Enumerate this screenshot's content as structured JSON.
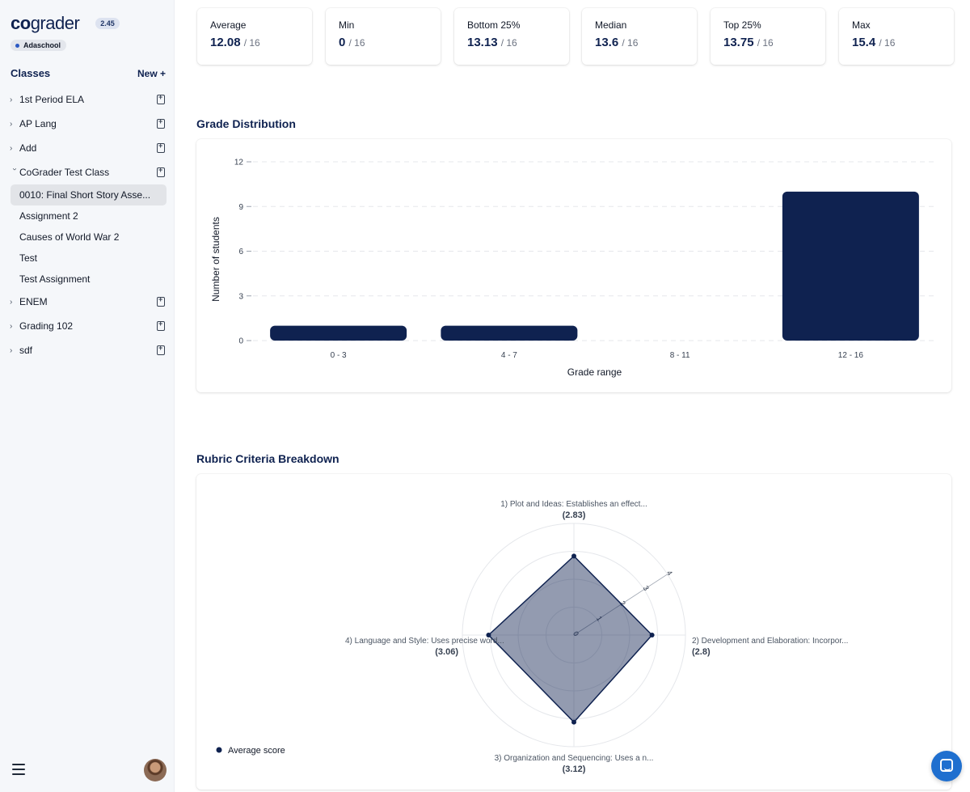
{
  "app": {
    "logo_co": "co",
    "logo_grader": "grader",
    "version": "2.45",
    "org": "Adaschool"
  },
  "sidebar": {
    "classes_title": "Classes",
    "new_label": "New +",
    "classes": [
      {
        "name": "1st Period ELA"
      },
      {
        "name": "AP Lang"
      },
      {
        "name": "Add"
      },
      {
        "name": "CoGrader Test Class",
        "assignments": [
          "0010: Final Short Story Asse...",
          "Assignment 2",
          "Causes of World War 2",
          "Test",
          "Test Assignment"
        ]
      },
      {
        "name": "ENEM"
      },
      {
        "name": "Grading 102"
      },
      {
        "name": "sdf"
      }
    ]
  },
  "stats": [
    {
      "label": "Average",
      "value": "12.08",
      "denom": "/ 16"
    },
    {
      "label": "Min",
      "value": "0",
      "denom": "/ 16"
    },
    {
      "label": "Bottom 25%",
      "value": "13.13",
      "denom": "/ 16"
    },
    {
      "label": "Median",
      "value": "13.6",
      "denom": "/ 16"
    },
    {
      "label": "Top 25%",
      "value": "13.75",
      "denom": "/ 16"
    },
    {
      "label": "Max",
      "value": "15.4",
      "denom": "/ 16"
    }
  ],
  "grade_distribution_title": "Grade Distribution",
  "rubric_title": "Rubric Criteria Breakdown",
  "chart_data": [
    {
      "type": "bar",
      "title": "Grade Distribution",
      "categories": [
        "0 - 3",
        "4 - 7",
        "8 - 11",
        "12 - 16"
      ],
      "values": [
        1,
        1,
        0,
        10
      ],
      "xlabel": "Grade range",
      "ylabel": "Number of students",
      "yticks": [
        0,
        3,
        6,
        9,
        12
      ],
      "ylim": [
        0,
        12
      ],
      "grid": true
    },
    {
      "type": "radar",
      "title": "Rubric Criteria Breakdown",
      "axes": [
        {
          "label": "1) Plot and Ideas: Establishes an effect...",
          "value": 2.83,
          "display": "(2.83)"
        },
        {
          "label": "2) Development and Elaboration: Incorpor...",
          "value": 2.8,
          "display": "(2.8)"
        },
        {
          "label": "3) Organization and Sequencing: Uses a n...",
          "value": 3.12,
          "display": "(3.12)"
        },
        {
          "label": "4) Language and Style: Uses precise word...",
          "value": 3.06,
          "display": "(3.06)"
        }
      ],
      "rticks": [
        0,
        1,
        2,
        3,
        4
      ],
      "rlim": [
        0,
        4
      ],
      "legend": "Average score",
      "color": "#0f2250"
    }
  ]
}
